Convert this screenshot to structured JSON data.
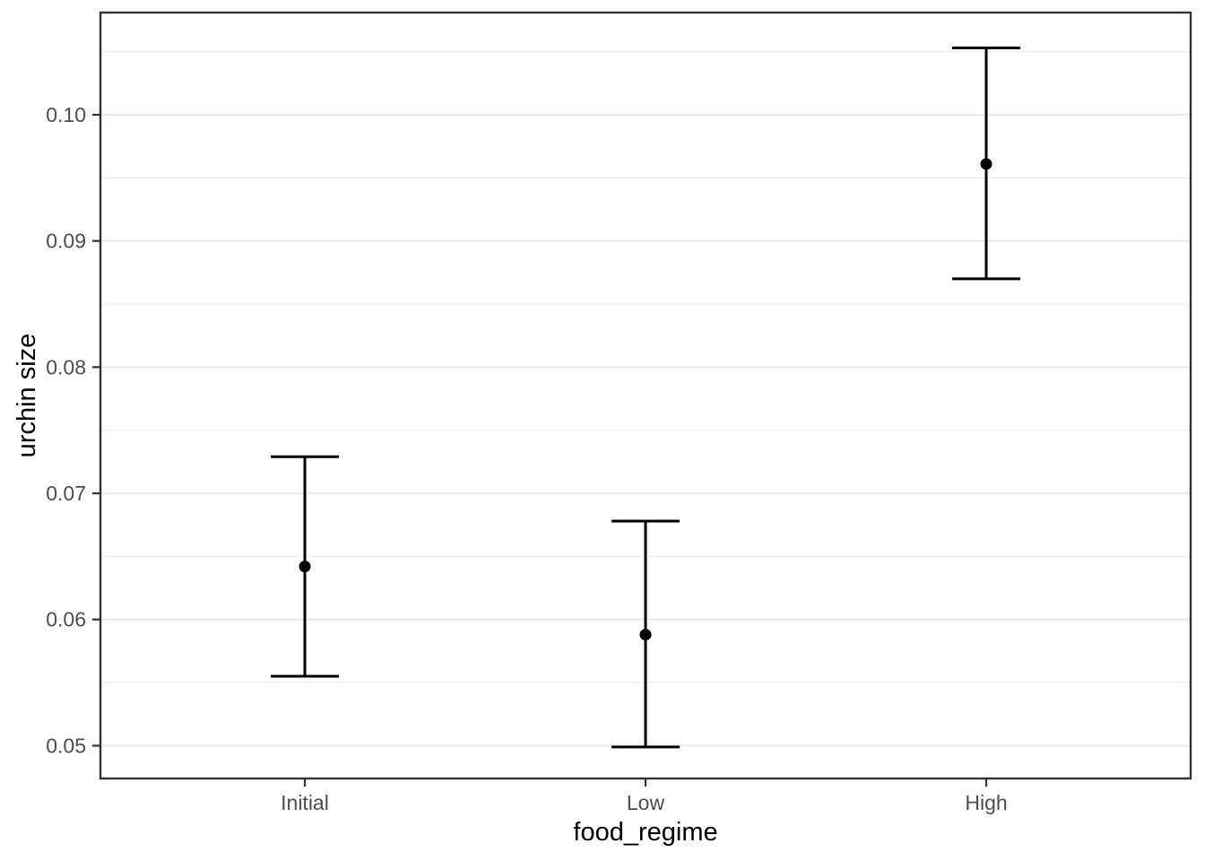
{
  "chart_data": {
    "type": "scatter",
    "subtype": "point-with-errorbar",
    "title": "",
    "xlabel": "food_regime",
    "ylabel": "urchin size",
    "categories": [
      "Initial",
      "Low",
      "High"
    ],
    "points": [
      {
        "category": "Initial",
        "fitted": 0.0642,
        "lower": 0.0555,
        "upper": 0.0729
      },
      {
        "category": "Low",
        "fitted": 0.0588,
        "lower": 0.0499,
        "upper": 0.0678
      },
      {
        "category": "High",
        "fitted": 0.0961,
        "lower": 0.087,
        "upper": 0.1053
      }
    ],
    "y_major_ticks": [
      0.05,
      0.06,
      0.07,
      0.08,
      0.09,
      0.1
    ],
    "y_major_tick_labels": [
      "0.05",
      "0.06",
      "0.07",
      "0.08",
      "0.09",
      "0.10"
    ],
    "y_minor_ticks": [
      0.055,
      0.065,
      0.075,
      0.085,
      0.095,
      0.105
    ],
    "ylim": [
      0.0474,
      0.1081
    ],
    "grid": "major-and-minor",
    "legend": "none",
    "colors": {
      "background": "#ffffff",
      "panel_background": "#ffffff",
      "panel_border": "#333333",
      "grid_major": "#ebebeb",
      "grid_minor": "#f0f0f0",
      "tick_mark": "#333333",
      "tick_label": "#4d4d4d",
      "axis_title": "#000000",
      "data": "#000000"
    }
  }
}
